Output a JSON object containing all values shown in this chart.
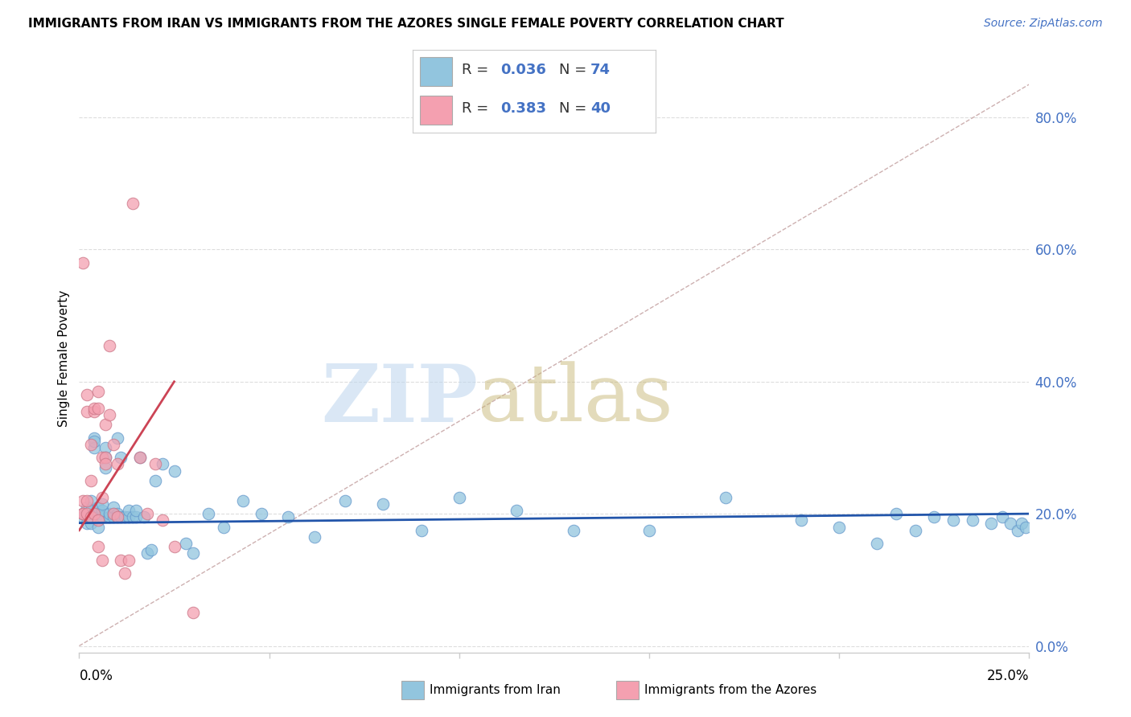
{
  "title": "IMMIGRANTS FROM IRAN VS IMMIGRANTS FROM THE AZORES SINGLE FEMALE POVERTY CORRELATION CHART",
  "source": "Source: ZipAtlas.com",
  "ylabel": "Single Female Poverty",
  "xlim": [
    0.0,
    0.25
  ],
  "ylim": [
    -0.01,
    0.88
  ],
  "right_yticks": [
    0.0,
    0.2,
    0.4,
    0.6,
    0.8
  ],
  "right_yticklabels": [
    "0.0%",
    "20.0%",
    "40.0%",
    "60.0%",
    "80.0%"
  ],
  "iran_color": "#92C5DE",
  "azores_color": "#F4A0B0",
  "iran_line_color": "#2255AA",
  "azores_line_color": "#CC4455",
  "ref_line_color": "#C8A8A8",
  "iran_R": 0.036,
  "iran_N": 74,
  "azores_R": 0.383,
  "azores_N": 40,
  "iran_x": [
    0.001,
    0.001,
    0.002,
    0.002,
    0.002,
    0.003,
    0.003,
    0.003,
    0.003,
    0.004,
    0.004,
    0.004,
    0.005,
    0.005,
    0.005,
    0.005,
    0.006,
    0.006,
    0.006,
    0.007,
    0.007,
    0.007,
    0.008,
    0.008,
    0.009,
    0.009,
    0.009,
    0.01,
    0.01,
    0.011,
    0.011,
    0.012,
    0.013,
    0.013,
    0.014,
    0.015,
    0.015,
    0.016,
    0.017,
    0.018,
    0.019,
    0.02,
    0.022,
    0.025,
    0.028,
    0.03,
    0.034,
    0.038,
    0.043,
    0.048,
    0.055,
    0.062,
    0.07,
    0.08,
    0.09,
    0.1,
    0.115,
    0.13,
    0.15,
    0.17,
    0.19,
    0.2,
    0.21,
    0.215,
    0.22,
    0.225,
    0.23,
    0.235,
    0.24,
    0.243,
    0.245,
    0.247,
    0.248,
    0.249
  ],
  "iran_y": [
    0.2,
    0.195,
    0.21,
    0.195,
    0.185,
    0.22,
    0.185,
    0.195,
    0.205,
    0.315,
    0.3,
    0.31,
    0.195,
    0.2,
    0.21,
    0.18,
    0.195,
    0.205,
    0.215,
    0.3,
    0.285,
    0.27,
    0.195,
    0.2,
    0.2,
    0.195,
    0.21,
    0.315,
    0.2,
    0.285,
    0.195,
    0.195,
    0.195,
    0.205,
    0.195,
    0.195,
    0.205,
    0.285,
    0.195,
    0.14,
    0.145,
    0.25,
    0.275,
    0.265,
    0.155,
    0.14,
    0.2,
    0.18,
    0.22,
    0.2,
    0.195,
    0.165,
    0.22,
    0.215,
    0.175,
    0.225,
    0.205,
    0.175,
    0.175,
    0.225,
    0.19,
    0.18,
    0.155,
    0.2,
    0.175,
    0.195,
    0.19,
    0.19,
    0.185,
    0.195,
    0.185,
    0.175,
    0.185,
    0.18
  ],
  "azores_x": [
    0.001,
    0.001,
    0.001,
    0.001,
    0.002,
    0.002,
    0.002,
    0.002,
    0.003,
    0.003,
    0.003,
    0.004,
    0.004,
    0.004,
    0.005,
    0.005,
    0.005,
    0.005,
    0.006,
    0.006,
    0.006,
    0.007,
    0.007,
    0.007,
    0.008,
    0.008,
    0.009,
    0.009,
    0.01,
    0.01,
    0.011,
    0.012,
    0.013,
    0.014,
    0.016,
    0.018,
    0.02,
    0.022,
    0.025,
    0.03
  ],
  "azores_y": [
    0.2,
    0.2,
    0.58,
    0.22,
    0.22,
    0.355,
    0.38,
    0.2,
    0.195,
    0.25,
    0.305,
    0.355,
    0.36,
    0.2,
    0.385,
    0.36,
    0.19,
    0.15,
    0.285,
    0.225,
    0.13,
    0.285,
    0.275,
    0.335,
    0.455,
    0.35,
    0.305,
    0.2,
    0.275,
    0.195,
    0.13,
    0.11,
    0.13,
    0.67,
    0.285,
    0.2,
    0.275,
    0.19,
    0.15,
    0.05
  ]
}
